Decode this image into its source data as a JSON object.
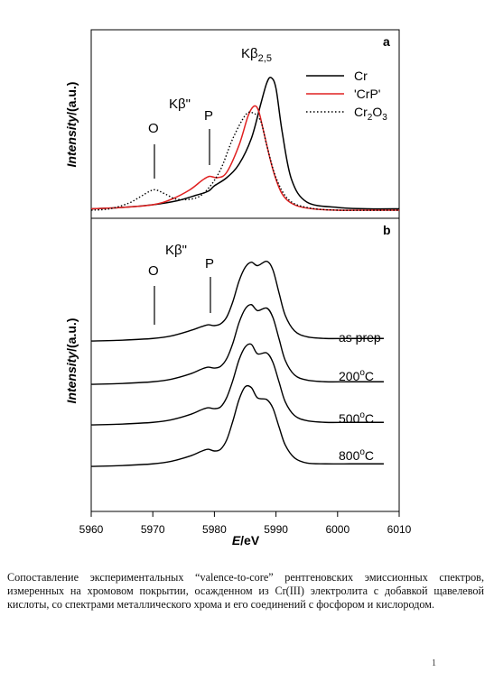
{
  "chart_data": [
    {
      "type": "line",
      "panel_label": "a",
      "xlabel": "E/eV",
      "ylabel": "Intensity/(a.u.)",
      "xlim": [
        5960,
        6010
      ],
      "legend_position": "top-right",
      "peak_labels": [
        "Kβ2,5",
        "Kβ\"",
        "P",
        "O"
      ],
      "series": [
        {
          "name": "Cr",
          "color": "#000000",
          "dash": "solid",
          "x": [
            5960,
            5965,
            5970,
            5974,
            5977,
            5979,
            5980,
            5982,
            5984,
            5986,
            5987.5,
            5988.5,
            5989.2,
            5990,
            5991,
            5992.5,
            5995,
            6000,
            6005,
            6010
          ],
          "y": [
            0.03,
            0.04,
            0.06,
            0.09,
            0.13,
            0.16,
            0.2,
            0.26,
            0.36,
            0.55,
            0.8,
            0.96,
            1.0,
            0.92,
            0.6,
            0.25,
            0.08,
            0.04,
            0.03,
            0.03
          ]
        },
        {
          "name": "'CrP'",
          "color": "#e02020",
          "dash": "solid",
          "x": [
            5960,
            5965,
            5970,
            5973,
            5976,
            5978,
            5979.2,
            5980.5,
            5982,
            5984,
            5985.5,
            5986.5,
            5987.2,
            5988,
            5989.5,
            5991,
            5993,
            5996,
            6000,
            6005,
            6010
          ],
          "y": [
            0.03,
            0.04,
            0.06,
            0.1,
            0.17,
            0.24,
            0.27,
            0.26,
            0.3,
            0.5,
            0.72,
            0.79,
            0.75,
            0.6,
            0.32,
            0.14,
            0.06,
            0.03,
            0.02,
            0.02,
            0.02
          ]
        },
        {
          "name": "Cr2O3",
          "color": "#000000",
          "dash": "dotted",
          "x": [
            5960,
            5963,
            5966,
            5968,
            5969.5,
            5970.5,
            5972,
            5974,
            5977,
            5979,
            5981,
            5983,
            5985,
            5986.2,
            5987.5,
            5988.5,
            5990,
            5992,
            5995,
            6000,
            6010
          ],
          "y": [
            0.02,
            0.03,
            0.07,
            0.12,
            0.16,
            0.17,
            0.14,
            0.1,
            0.11,
            0.18,
            0.32,
            0.55,
            0.72,
            0.74,
            0.68,
            0.5,
            0.26,
            0.1,
            0.04,
            0.02,
            0.02
          ]
        }
      ]
    },
    {
      "type": "line",
      "panel_label": "b",
      "xlabel": "E/eV",
      "ylabel": "Intensity/(a.u.)",
      "xlim": [
        5960,
        6010
      ],
      "xticks": [
        5960,
        5970,
        5980,
        5990,
        6000,
        6010
      ],
      "peak_labels": [
        "Kβ\"",
        "P",
        "O"
      ],
      "series": [
        {
          "name": "as prep",
          "x": [
            5960,
            5965,
            5970,
            5973,
            5976,
            5978,
            5979,
            5980,
            5981,
            5982,
            5983,
            5984,
            5985,
            5986,
            5987,
            5988.5,
            5989.5,
            5990.5,
            5991.5,
            5993,
            5995,
            5998,
            6002,
            6007.5
          ],
          "y": [
            0.02,
            0.03,
            0.05,
            0.08,
            0.14,
            0.19,
            0.21,
            0.2,
            0.22,
            0.3,
            0.48,
            0.72,
            0.88,
            0.94,
            0.9,
            0.95,
            0.85,
            0.58,
            0.32,
            0.14,
            0.07,
            0.05,
            0.05,
            0.05
          ]
        },
        {
          "name": "200°C",
          "x": [
            5960,
            5965,
            5970,
            5973,
            5976,
            5978,
            5979,
            5980,
            5981,
            5982,
            5983,
            5984,
            5985,
            5986,
            5987,
            5988.5,
            5989.5,
            5990.5,
            5991.5,
            5993,
            5995,
            5998,
            6002,
            6007.5
          ],
          "y": [
            0.02,
            0.03,
            0.05,
            0.08,
            0.14,
            0.2,
            0.22,
            0.21,
            0.23,
            0.32,
            0.5,
            0.74,
            0.9,
            0.95,
            0.88,
            0.91,
            0.8,
            0.55,
            0.3,
            0.13,
            0.07,
            0.05,
            0.05,
            0.05
          ]
        },
        {
          "name": "500°C",
          "x": [
            5960,
            5965,
            5970,
            5973,
            5976,
            5978,
            5979,
            5980,
            5981,
            5982,
            5983,
            5984,
            5985,
            5986,
            5987,
            5988.5,
            5989.5,
            5990.5,
            5991.5,
            5993,
            5995,
            5998,
            6002,
            6007.5
          ],
          "y": [
            0.02,
            0.03,
            0.05,
            0.08,
            0.14,
            0.2,
            0.22,
            0.21,
            0.23,
            0.34,
            0.54,
            0.78,
            0.93,
            0.96,
            0.85,
            0.86,
            0.75,
            0.52,
            0.29,
            0.13,
            0.07,
            0.05,
            0.05,
            0.05
          ]
        },
        {
          "name": "800°C",
          "x": [
            5960,
            5965,
            5970,
            5973,
            5976,
            5978,
            5979,
            5980,
            5981,
            5982,
            5983,
            5984,
            5985,
            5986,
            5987,
            5988.5,
            5989.5,
            5990.5,
            5991.5,
            5993,
            5995,
            5998,
            6002,
            6007.5
          ],
          "y": [
            0.02,
            0.03,
            0.05,
            0.08,
            0.14,
            0.2,
            0.22,
            0.2,
            0.22,
            0.33,
            0.55,
            0.8,
            0.95,
            0.94,
            0.82,
            0.8,
            0.7,
            0.48,
            0.27,
            0.12,
            0.06,
            0.05,
            0.05,
            0.05
          ]
        }
      ]
    }
  ],
  "labels": {
    "panel_a": "a",
    "panel_b": "b",
    "kbeta25_main": "Kβ",
    "kbeta25_sub": "2,5",
    "kbeta_double": "Kβ\"",
    "p_label": "P",
    "o_label": "O",
    "ylabel_italic": "Intensity",
    "ylabel_rest": "/(a.u.)",
    "xlabel_italic": "E",
    "xlabel_rest": "/eV",
    "legend_cr": "Cr",
    "legend_crp": "'CrP'",
    "legend_cr2o3_a": "Cr",
    "legend_cr2o3_sub1": "2",
    "legend_cr2o3_b": "O",
    "legend_cr2o3_sub2": "3",
    "as_prep": "as prep",
    "t200": "200",
    "t500": "500",
    "t800": "800",
    "deg_o": "o",
    "deg_c": "C"
  },
  "caption": "Сопоставление экспериментальных “valence-to-core” рентгеновских эмиссионных спектров, измеренных на хромовом покрытии, осажденном из Cr(III) электролита с добавкой щавелевой кислоты, со спектрами металлического хрома и его соединений с фосфором и кислородом.",
  "page_number": "1"
}
